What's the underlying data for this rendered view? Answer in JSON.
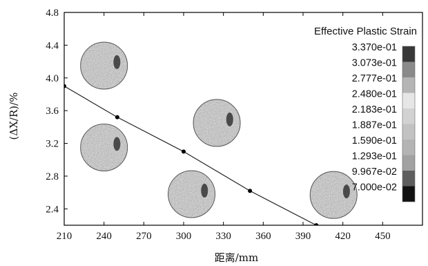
{
  "chart_data": {
    "type": "line",
    "xlabel": "距离/mm",
    "ylabel": "(ΔX/R)/%",
    "xlim": [
      210,
      480
    ],
    "ylim": [
      2.2,
      4.8
    ],
    "xticks": [
      210,
      240,
      270,
      300,
      330,
      360,
      390,
      420,
      450
    ],
    "yticks": [
      2.4,
      2.8,
      3.2,
      3.6,
      4.0,
      4.4,
      4.8
    ],
    "xtick_labels": [
      "210",
      "240",
      "270",
      "300",
      "330",
      "360",
      "390",
      "420",
      "450"
    ],
    "ytick_labels": [
      "2.4",
      "2.8",
      "3.2",
      "3.6",
      "4.0",
      "4.4",
      "4.8"
    ],
    "series": [
      {
        "x": [
          210,
          250,
          300,
          350,
          400
        ],
        "y": [
          3.9,
          3.52,
          3.1,
          2.62,
          2.2
        ]
      }
    ],
    "grid": false,
    "legend": {
      "title": "Effective Plastic Strain",
      "placement": "right",
      "entries": [
        "3.370e-01",
        "3.073e-01",
        "2.777e-01",
        "2.480e-01",
        "2.183e-01",
        "1.887e-01",
        "1.590e-01",
        "1.293e-01",
        "9.967e-02",
        "7.000e-02"
      ],
      "colors": [
        "#383838",
        "#8a8a8a",
        "#b5b5b5",
        "#e6e6e6",
        "#d2d2d2",
        "#c2c2c2",
        "#b4b4b4",
        "#a2a2a2",
        "#5e5e5e",
        "#121212"
      ]
    },
    "insets": [
      {
        "x": 240,
        "y": 4.15
      },
      {
        "x": 240,
        "y": 3.15
      },
      {
        "x": 306,
        "y": 2.58
      },
      {
        "x": 325,
        "y": 3.45
      },
      {
        "x": 413,
        "y": 2.57
      }
    ]
  }
}
